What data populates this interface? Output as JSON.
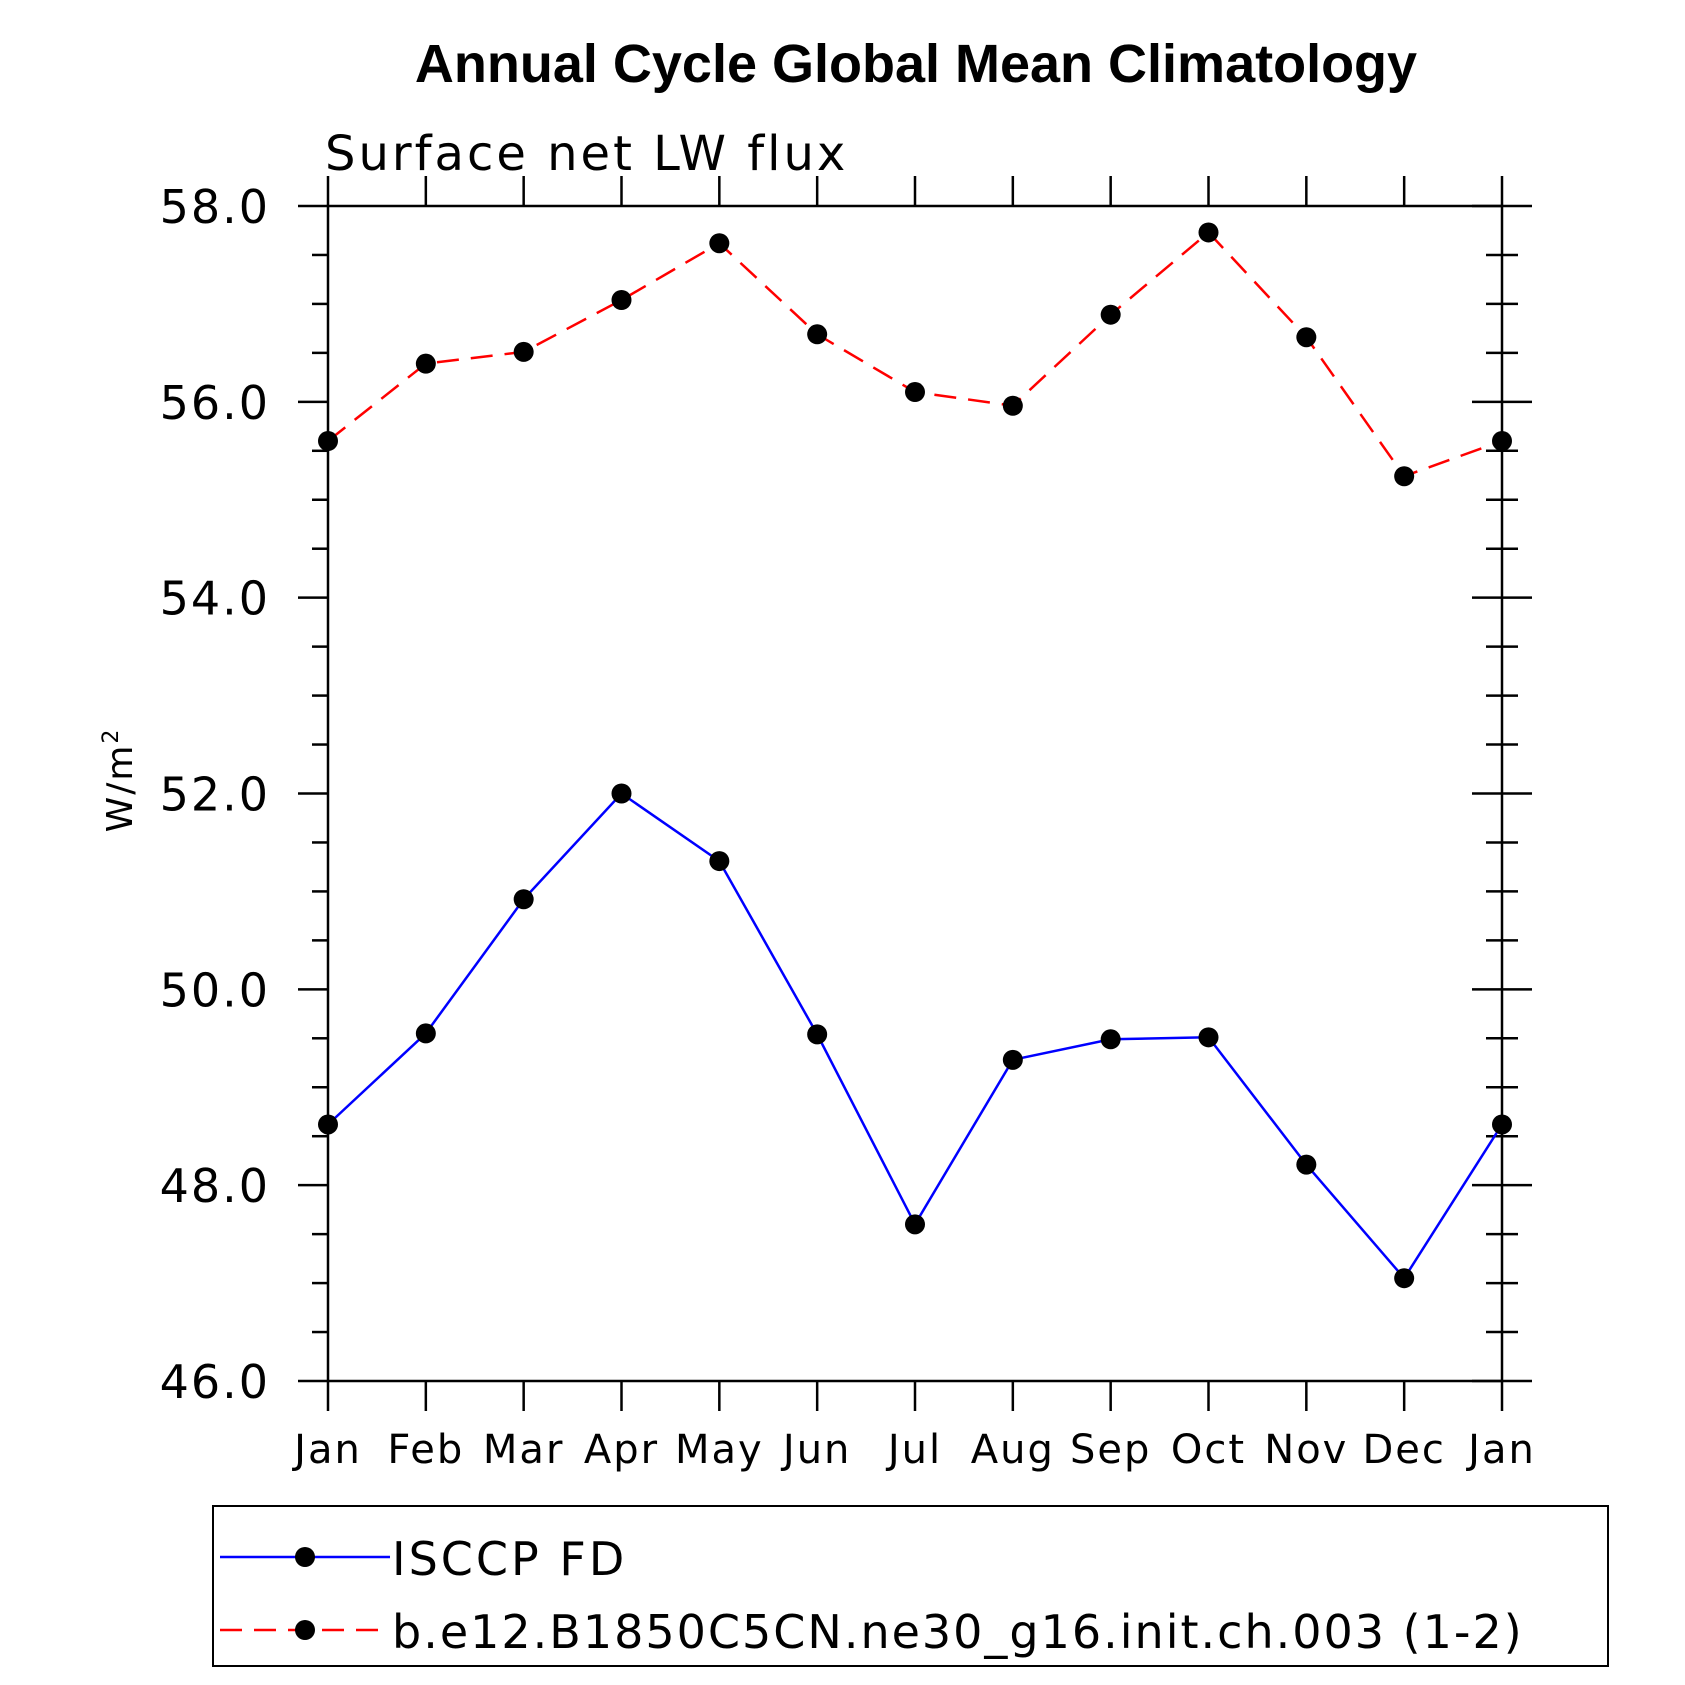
{
  "chart_data": {
    "type": "line",
    "title": "Annual Cycle Global Mean Climatology",
    "subtitle": "Surface net LW flux",
    "ylabel": "W/m",
    "ylabel_superscript": "2",
    "categories": [
      "Jan",
      "Feb",
      "Mar",
      "Apr",
      "May",
      "Jun",
      "Jul",
      "Aug",
      "Sep",
      "Oct",
      "Nov",
      "Dec",
      "Jan"
    ],
    "ylim": [
      46.0,
      58.0
    ],
    "yticks": [
      "46.0",
      "48.0",
      "50.0",
      "52.0",
      "54.0",
      "56.0",
      "58.0"
    ],
    "ytick_values": [
      46,
      48,
      50,
      52,
      54,
      56,
      58
    ],
    "ylim_minor_step": 0.5,
    "grid": false,
    "legend_position": "bottom",
    "series": [
      {
        "name": "ISCCP FD",
        "color": "#0000ff",
        "line_style": "solid",
        "marker": "filled-circle",
        "values": [
          48.62,
          49.55,
          50.92,
          52.0,
          51.31,
          49.54,
          47.6,
          49.28,
          49.49,
          49.51,
          48.21,
          47.05,
          48.62
        ]
      },
      {
        "name": "b.e12.B1850C5CN.ne30_g16.init.ch.003 (1-2)",
        "color": "#ff0000",
        "line_style": "dashed",
        "marker": "filled-circle",
        "values": [
          55.6,
          56.39,
          56.51,
          57.04,
          57.62,
          56.69,
          56.1,
          55.96,
          56.89,
          57.73,
          56.66,
          55.24,
          55.6
        ]
      }
    ]
  }
}
